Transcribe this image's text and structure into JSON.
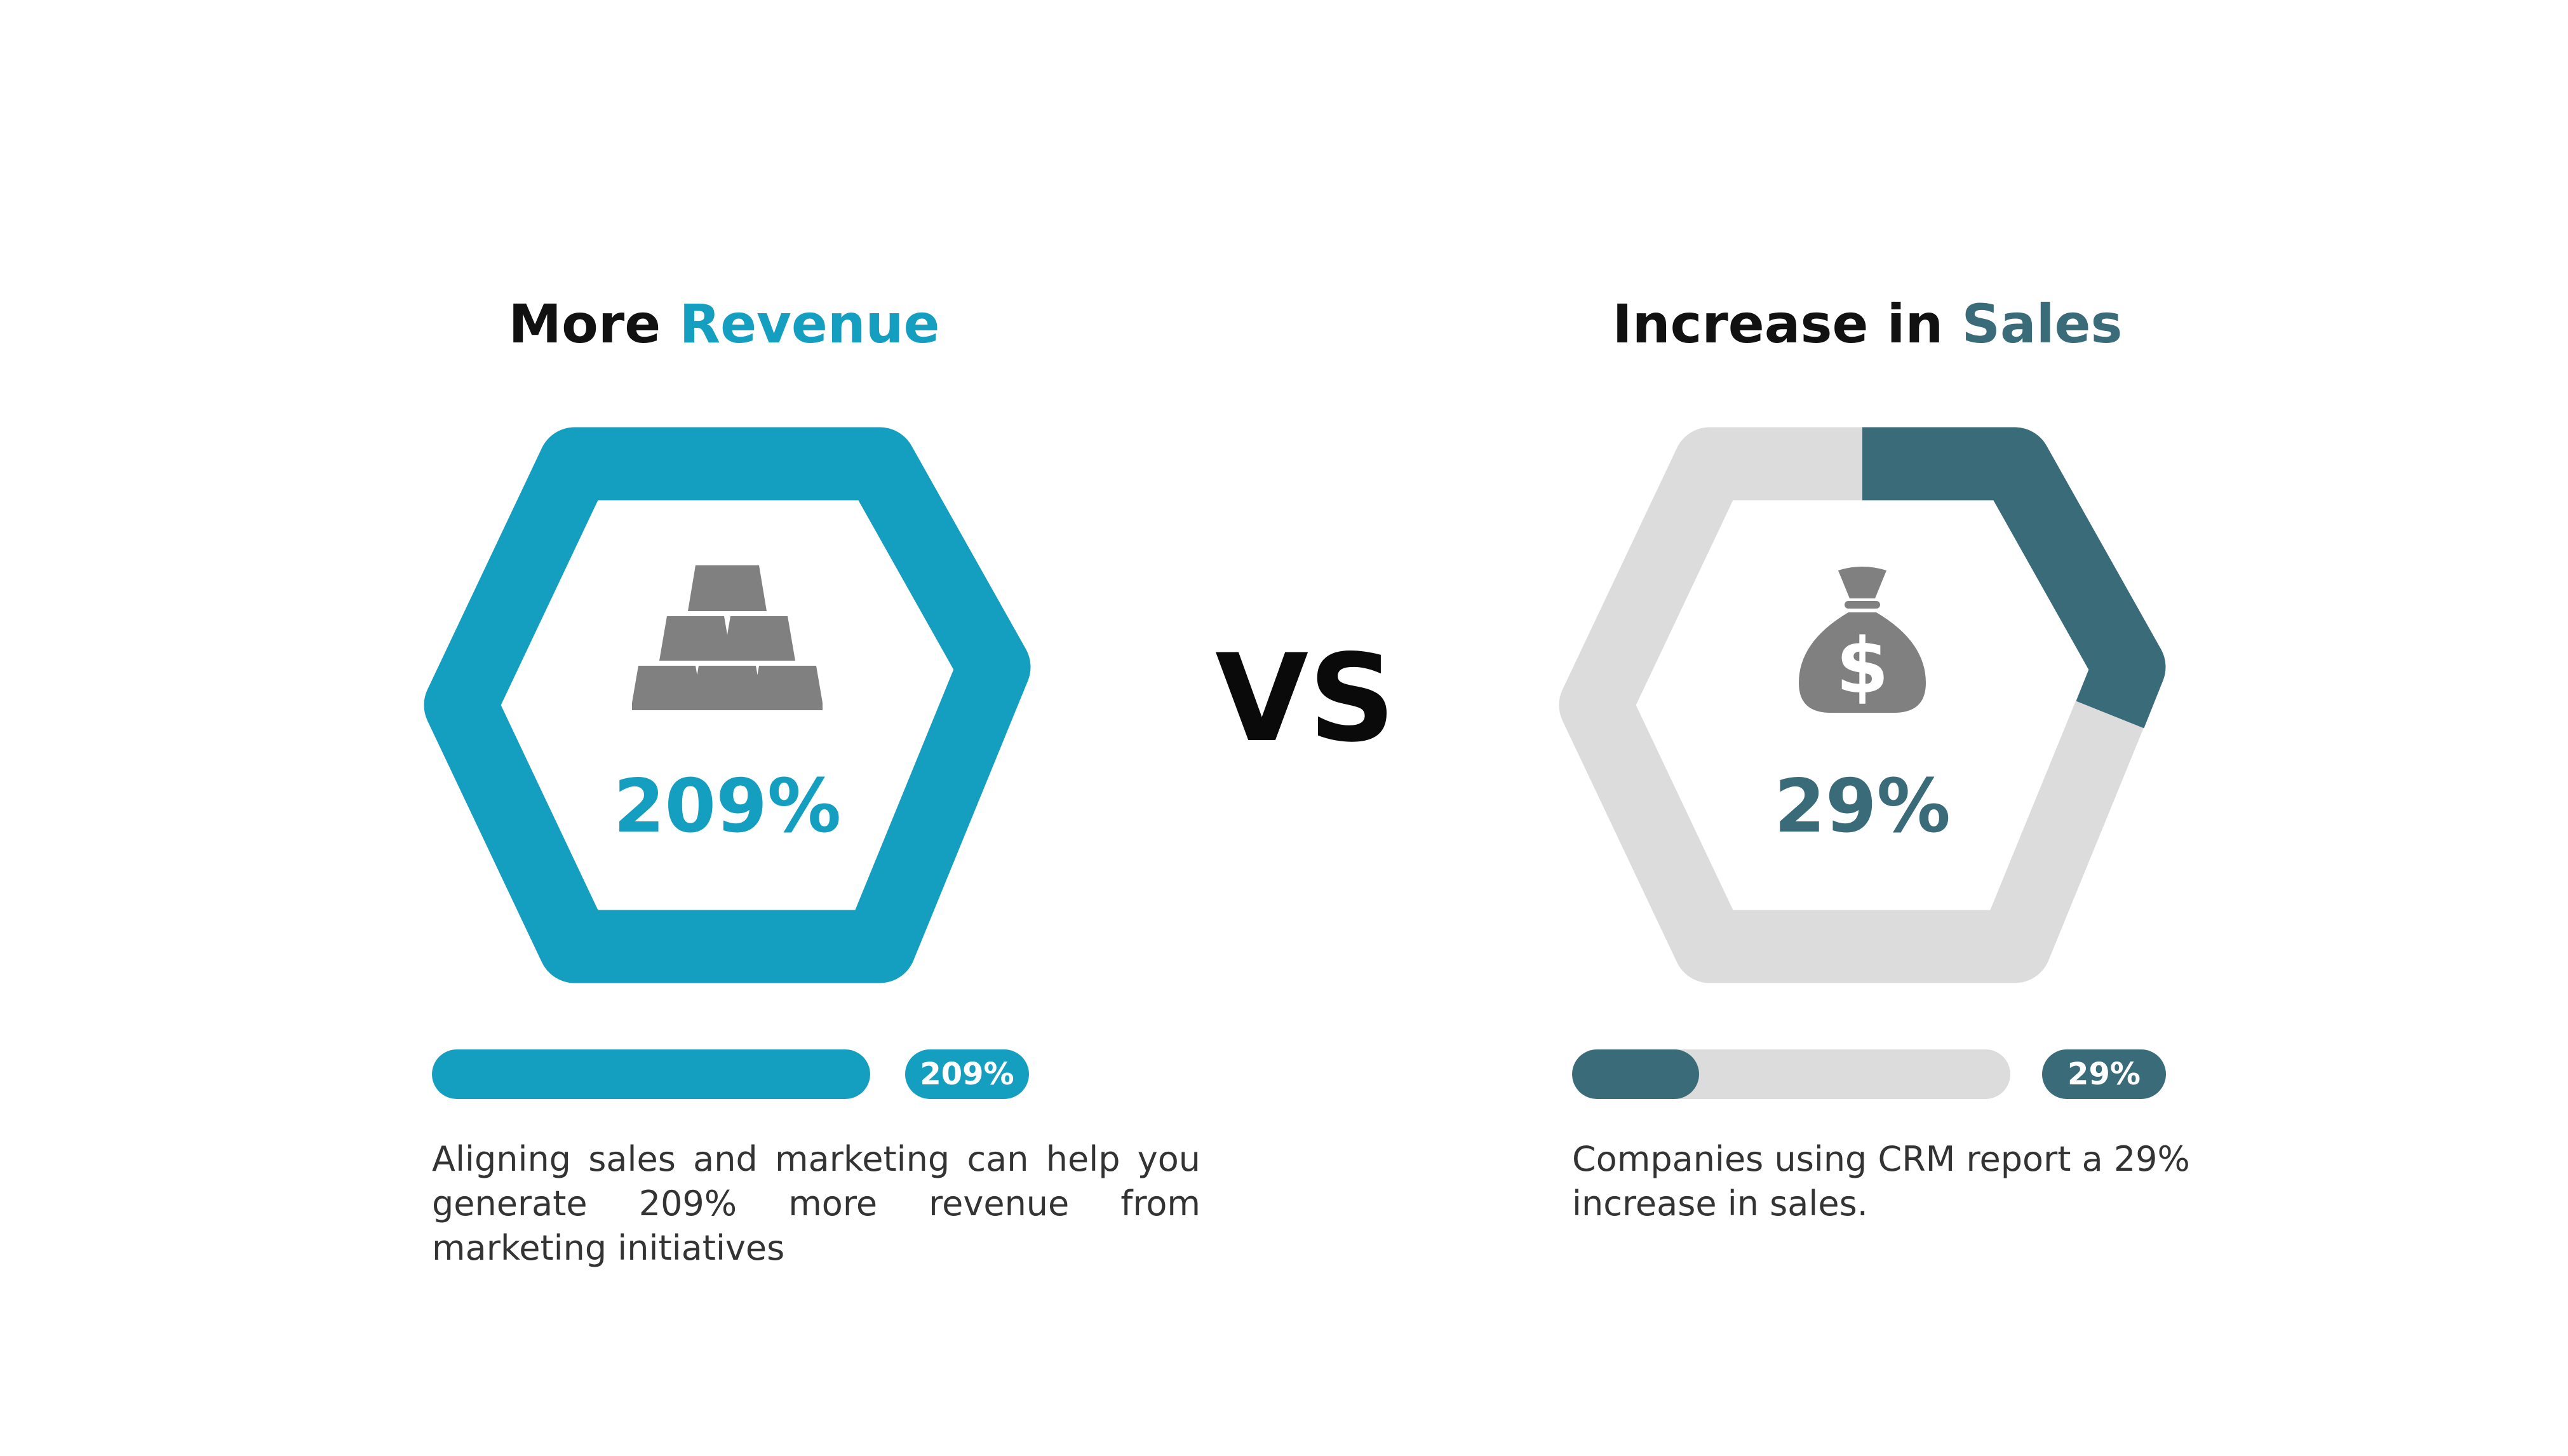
{
  "left": {
    "title_prefix": "More ",
    "title_accent": "Revenue",
    "percent": "209%",
    "badge": "209%",
    "progress": 1.0,
    "description": "Aligning sales and marketing can help you generate 209% more revenue from marketing initiatives",
    "icon": "gold-bars-icon",
    "color": "#149fc1"
  },
  "vs": "VS",
  "right": {
    "title_prefix": "Increase in ",
    "title_accent": "Sales",
    "percent": "29%",
    "badge": "29%",
    "progress": 0.29,
    "description": "Companies using CRM report a 29% increase in sales.",
    "icon": "money-bag-icon",
    "color": "#3a6b78"
  },
  "colors": {
    "track": "#dcdcdc",
    "icon": "#808080",
    "text": "#333333"
  }
}
